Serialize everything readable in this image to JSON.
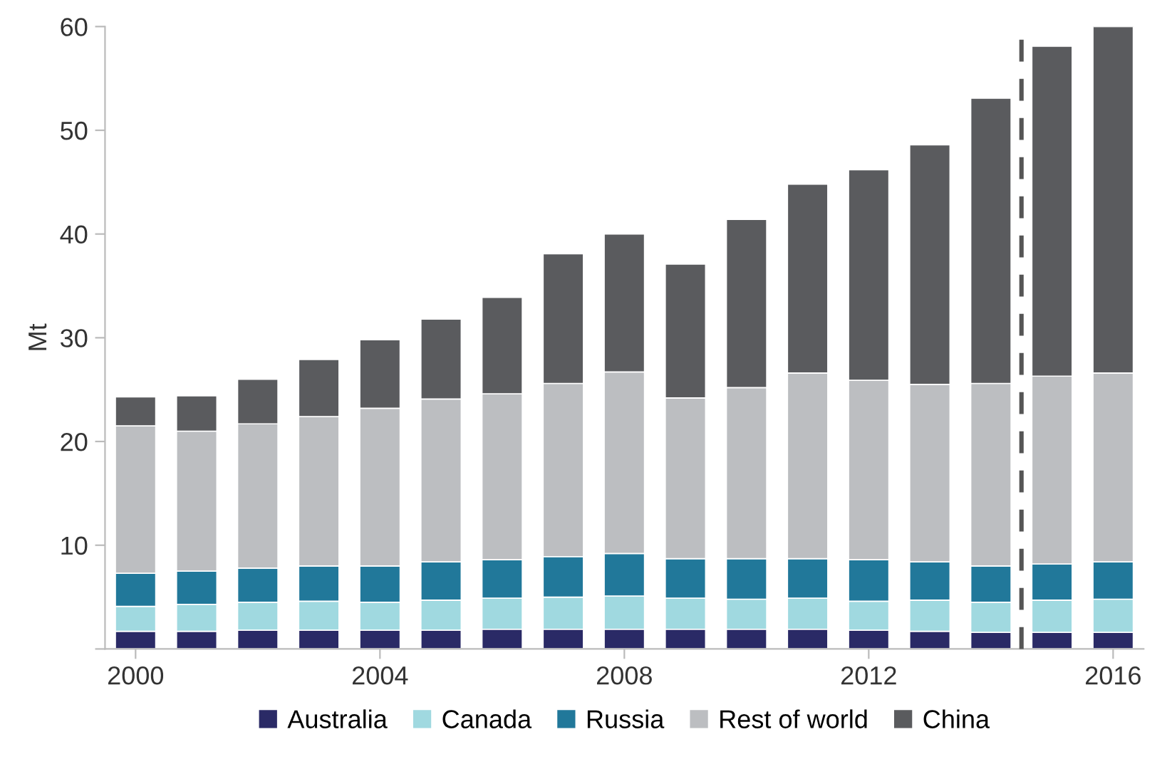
{
  "chart_data": {
    "type": "bar",
    "stacked": true,
    "ylabel": "Mt",
    "x": [
      2000,
      2001,
      2002,
      2003,
      2004,
      2005,
      2006,
      2007,
      2008,
      2009,
      2010,
      2011,
      2012,
      2013,
      2014,
      2015,
      2016
    ],
    "xlim": [
      1999.5,
      2016.5
    ],
    "xticks": [
      2000,
      2004,
      2008,
      2012,
      2016
    ],
    "ylim": [
      0,
      60
    ],
    "yticks": [
      {
        "value": 0,
        "label": null
      },
      10,
      20,
      30,
      40,
      50,
      60
    ],
    "series": [
      {
        "name": "Australia",
        "color": "#2a2a66",
        "values": [
          1.7,
          1.7,
          1.8,
          1.8,
          1.8,
          1.8,
          1.9,
          1.9,
          1.9,
          1.9,
          1.9,
          1.9,
          1.8,
          1.7,
          1.6,
          1.6,
          1.6
        ]
      },
      {
        "name": "Canada",
        "color": "#a0d9e0",
        "values": [
          2.4,
          2.6,
          2.7,
          2.8,
          2.7,
          2.9,
          3.0,
          3.1,
          3.2,
          3.0,
          2.9,
          3.0,
          2.8,
          3.0,
          2.9,
          3.1,
          3.2
        ]
      },
      {
        "name": "Russia",
        "color": "#21789a",
        "values": [
          3.2,
          3.2,
          3.3,
          3.4,
          3.5,
          3.7,
          3.7,
          3.9,
          4.1,
          3.8,
          3.9,
          3.8,
          4.0,
          3.7,
          3.5,
          3.5,
          3.6
        ]
      },
      {
        "name": "Rest of world",
        "color": "#bcbec1",
        "values": [
          14.2,
          13.5,
          13.9,
          14.4,
          15.2,
          15.7,
          16.0,
          16.7,
          17.5,
          15.5,
          16.5,
          17.9,
          17.3,
          17.1,
          17.6,
          18.1,
          18.2
        ]
      },
      {
        "name": "China",
        "color": "#5a5b5e",
        "values": [
          2.8,
          3.4,
          4.3,
          5.5,
          6.6,
          7.7,
          9.3,
          12.5,
          13.3,
          12.9,
          16.2,
          18.2,
          20.3,
          23.1,
          27.5,
          31.8,
          33.4
        ]
      }
    ],
    "ref_lines": [
      {
        "axis": "x",
        "value": 2014.5,
        "color": "#555555",
        "line_style": "dashed"
      }
    ],
    "grid": false,
    "legend": "bottom"
  }
}
